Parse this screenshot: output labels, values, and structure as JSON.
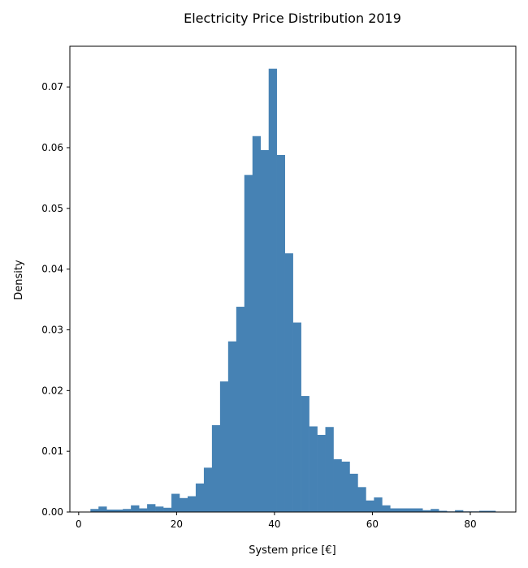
{
  "chart_data": {
    "type": "histogram",
    "title": "Electricity Price Distribution 2019",
    "xlabel": "System price [€]",
    "ylabel": "Density",
    "xlim": [
      -1.8,
      89.3
    ],
    "ylim": [
      0,
      0.0767
    ],
    "xticks": [
      0,
      20,
      40,
      60,
      80
    ],
    "yticks": [
      0.0,
      0.01,
      0.02,
      0.03,
      0.04,
      0.05,
      0.06,
      0.07
    ],
    "ytick_labels": [
      "0.00",
      "0.01",
      "0.02",
      "0.03",
      "0.04",
      "0.05",
      "0.06",
      "0.07"
    ],
    "bar_color": "#4682b4",
    "grid": false,
    "bin_edges": [
      2.4,
      4.05,
      5.71,
      7.36,
      9.02,
      10.67,
      12.33,
      13.98,
      15.64,
      17.29,
      18.95,
      20.6,
      22.26,
      23.91,
      25.57,
      27.22,
      28.88,
      30.53,
      32.19,
      33.84,
      35.5,
      37.15,
      38.81,
      40.46,
      42.12,
      43.77,
      45.43,
      47.08,
      48.74,
      50.39,
      52.05,
      53.7,
      55.36,
      57.01,
      58.67,
      60.32,
      61.98,
      63.63,
      65.29,
      66.94,
      68.6,
      70.25,
      71.91,
      73.56,
      75.22,
      76.87,
      78.53,
      80.18,
      81.84,
      83.49,
      85.15
    ],
    "values": [
      0.0005,
      0.0009,
      0.0004,
      0.0004,
      0.0005,
      0.0011,
      0.0006,
      0.0013,
      0.0009,
      0.0007,
      0.003,
      0.0023,
      0.0026,
      0.0047,
      0.0073,
      0.0143,
      0.0215,
      0.0281,
      0.0338,
      0.0555,
      0.0619,
      0.0596,
      0.073,
      0.0588,
      0.0426,
      0.0312,
      0.0191,
      0.0141,
      0.0127,
      0.014,
      0.0087,
      0.0083,
      0.0063,
      0.0041,
      0.0019,
      0.0024,
      0.0011,
      0.0006,
      0.0006,
      0.0006,
      0.0006,
      0.0003,
      0.0005,
      0.0002,
      0.0001,
      0.0003,
      0.0001,
      0.0001,
      0.0002,
      0.0002
    ]
  }
}
